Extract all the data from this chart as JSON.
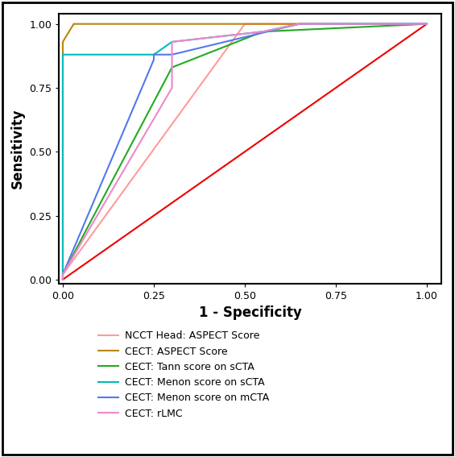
{
  "curves": {
    "NCCT Head: ASPECT Score": {
      "color": "#FF9B9B",
      "x": [
        0.0,
        0.0,
        0.5,
        0.65,
        1.0
      ],
      "y": [
        0.0,
        0.02,
        1.0,
        1.0,
        1.0
      ]
    },
    "CECT: ASPECT Score": {
      "color": "#B8860B",
      "x": [
        0.0,
        0.0,
        0.03,
        0.5,
        1.0
      ],
      "y": [
        0.0,
        0.93,
        1.0,
        1.0,
        1.0
      ]
    },
    "CECT: Tann score on sCTA": {
      "color": "#22AA22",
      "x": [
        0.0,
        0.0,
        0.3,
        0.55,
        1.0
      ],
      "y": [
        0.0,
        0.02,
        0.83,
        0.97,
        1.0
      ]
    },
    "CECT: Menon score on sCTA": {
      "color": "#00BBBB",
      "x": [
        0.0,
        0.0,
        0.25,
        0.3,
        0.55,
        0.65,
        1.0
      ],
      "y": [
        0.0,
        0.88,
        0.88,
        0.93,
        0.97,
        1.0,
        1.0
      ]
    },
    "CECT: Menon score on mCTA": {
      "color": "#5577EE",
      "x": [
        0.0,
        0.0,
        0.25,
        0.25,
        0.3,
        0.65,
        1.0
      ],
      "y": [
        0.0,
        0.02,
        0.86,
        0.88,
        0.88,
        1.0,
        1.0
      ]
    },
    "CECT: rLMC": {
      "color": "#EE88CC",
      "x": [
        0.0,
        0.0,
        0.3,
        0.3,
        0.55,
        0.65,
        1.0
      ],
      "y": [
        0.0,
        0.02,
        0.75,
        0.93,
        0.97,
        1.0,
        1.0
      ]
    }
  },
  "reference_line": {
    "color": "#EE0000",
    "x": [
      0.0,
      1.0
    ],
    "y": [
      0.0,
      1.0
    ]
  },
  "xlabel": "1 - Specificity",
  "ylabel": "Sensitivity",
  "xlim": [
    -0.01,
    1.04
  ],
  "ylim": [
    -0.015,
    1.04
  ],
  "xticks": [
    0.0,
    0.25,
    0.5,
    0.75,
    1.0
  ],
  "yticks": [
    0.0,
    0.25,
    0.5,
    0.75,
    1.0
  ],
  "background_color": "#FFFFFF",
  "border_color": "#000000",
  "axis_label_fontsize": 12,
  "tick_fontsize": 9,
  "legend_fontsize": 9,
  "line_width": 1.5
}
